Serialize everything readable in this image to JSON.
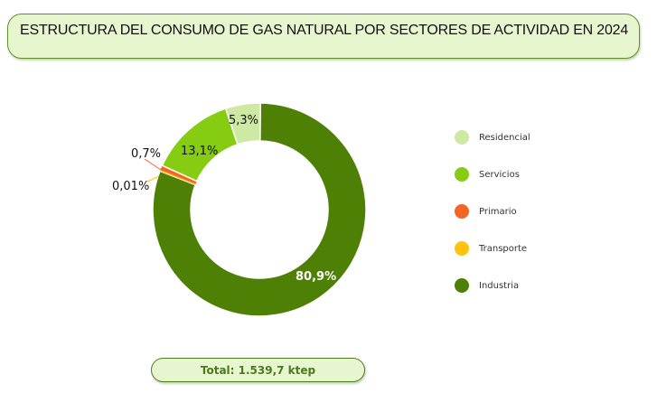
{
  "title": "ESTRUCTURA DEL CONSUMO DE GAS NATURAL POR SECTORES DE ACTIVIDAD EN 2024",
  "total_label": "Total: 1.539,7 ktep",
  "colors": {
    "residencial": "#cde9a4",
    "servicios": "#86cc12",
    "primario": "#f26522",
    "transporte": "#ffc20e",
    "industria": "#4e8006"
  },
  "legend": [
    {
      "label": "Residencial",
      "color": "#cde9a4"
    },
    {
      "label": "Servicios",
      "color": "#86cc12"
    },
    {
      "label": "Primario",
      "color": "#f26522"
    },
    {
      "label": "Transporte",
      "color": "#ffc20e"
    },
    {
      "label": "Industria",
      "color": "#4e8006"
    }
  ],
  "labels": {
    "industria": "80,9%",
    "transporte": "0,01%",
    "primario": "0,7%",
    "servicios": "13,1%",
    "residencial": "5,3%"
  },
  "chart_data": {
    "type": "pie",
    "variant": "donut",
    "title": "ESTRUCTURA DEL CONSUMO DE GAS NATURAL POR SECTORES DE ACTIVIDAD EN 2024",
    "categories": [
      "Industria",
      "Transporte",
      "Primario",
      "Servicios",
      "Residencial"
    ],
    "values": [
      80.9,
      0.01,
      0.7,
      13.1,
      5.3
    ],
    "unit": "%",
    "total": "1.539,7 ktep",
    "legend_position": "right",
    "legend_order": [
      "Residencial",
      "Servicios",
      "Primario",
      "Transporte",
      "Industria"
    ]
  }
}
